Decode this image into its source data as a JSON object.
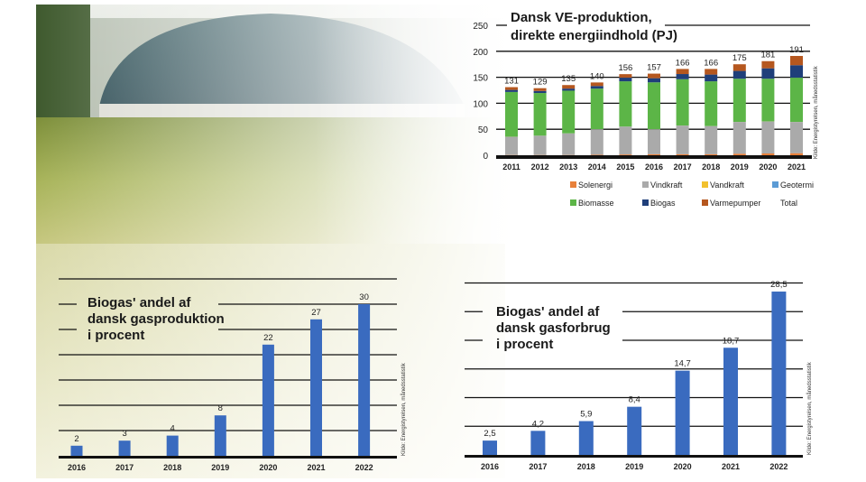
{
  "colors": {
    "background_field": "#c9c98a",
    "bar_blue": "#3a6bbf"
  },
  "chart_data": [
    {
      "type": "bar",
      "stacked": true,
      "title": [
        "Dansk VE-produktion,",
        "direkte energiindhold (PJ)"
      ],
      "source": "Kilde: Energistyrelsen, månedsstatistik",
      "categories": [
        "2011",
        "2012",
        "2013",
        "2014",
        "2015",
        "2016",
        "2017",
        "2018",
        "2019",
        "2020",
        "2021"
      ],
      "yticks": [
        "0",
        "50",
        "100",
        "150",
        "200",
        "250"
      ],
      "ylim": [
        0,
        250
      ],
      "grid": true,
      "legend_placement": "bottom",
      "series": [
        {
          "name": "Solenergi",
          "color": "#e8803a",
          "values": [
            0.5,
            0.5,
            0.5,
            1,
            1.5,
            2,
            2,
            2,
            3,
            3.5,
            4
          ]
        },
        {
          "name": "Vindkraft",
          "color": "#aaaaaa",
          "values": [
            35,
            37,
            41.5,
            49,
            53.5,
            48,
            55,
            54,
            61,
            61.5,
            60
          ]
        },
        {
          "name": "Vandkraft",
          "color": "#f2c12e",
          "values": [
            0.1,
            0.1,
            0.1,
            0.1,
            0.1,
            0.1,
            0.1,
            0.1,
            0.1,
            0.1,
            0.1
          ]
        },
        {
          "name": "Geotermi",
          "color": "#5b9bd5",
          "values": [
            0.1,
            0.1,
            0.1,
            0.1,
            0.1,
            0.1,
            0.1,
            0.1,
            0.1,
            0.1,
            0.1
          ]
        },
        {
          "name": "Biomasse",
          "color": "#5cb547",
          "values": [
            86,
            82,
            82,
            78,
            87,
            90,
            89,
            86,
            83,
            82,
            85
          ]
        },
        {
          "name": "Biogas",
          "color": "#1f3f7a",
          "values": [
            4,
            4,
            4,
            5,
            7,
            8,
            10,
            13,
            15,
            20,
            24
          ]
        },
        {
          "name": "Varmepumper",
          "color": "#b5571f",
          "values": [
            5.3,
            5.3,
            6.8,
            6.8,
            6.8,
            8.8,
            9.8,
            10.8,
            12.8,
            13.8,
            17.8
          ]
        }
      ],
      "total_label": "Total",
      "totals": [
        "131",
        "129",
        "135",
        "140",
        "156",
        "157",
        "166",
        "166",
        "175",
        "181",
        "191"
      ]
    },
    {
      "type": "bar",
      "title": [
        "Biogas' andel af",
        "dansk gasproduktion",
        "i procent"
      ],
      "source": "Kilde: Energistyrelsen, månedsstatistik",
      "categories": [
        "2016",
        "2017",
        "2018",
        "2019",
        "2020",
        "2021",
        "2022"
      ],
      "values": [
        2,
        3,
        4,
        8,
        22,
        27,
        30
      ],
      "labels": [
        "2",
        "3",
        "4",
        "8",
        "22",
        "27",
        "30"
      ],
      "ylim": [
        0,
        35
      ],
      "grid": true,
      "color": "#3a6bbf"
    },
    {
      "type": "bar",
      "title": [
        "Biogas' andel af",
        "dansk gasforbrug",
        "i procent"
      ],
      "source": "Kilde: Energistyrelsen, månedsstatistik",
      "categories": [
        "2016",
        "2017",
        "2018",
        "2019",
        "2020",
        "2021",
        "2022"
      ],
      "values": [
        2.5,
        4.2,
        5.9,
        8.4,
        14.7,
        18.7,
        28.5
      ],
      "labels": [
        "2,5",
        "4,2",
        "5,9",
        "8,4",
        "14,7",
        "18,7",
        "28,5"
      ],
      "ylim": [
        0,
        30
      ],
      "grid": true,
      "color": "#3a6bbf"
    }
  ]
}
